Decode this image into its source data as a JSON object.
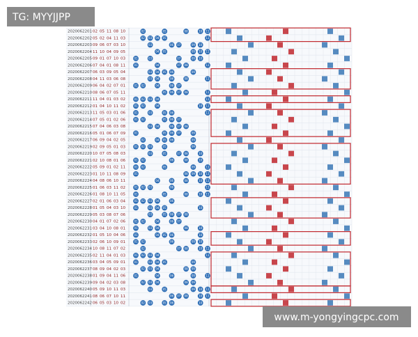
{
  "watermarks": {
    "top": "TG: MYYJJPP",
    "bottom": "www.m-yongyingcpc.com"
  },
  "table": {
    "rows": [
      {
        "issue": "2020062201",
        "nums": [
          "02",
          "05",
          "11",
          "08",
          "10"
        ]
      },
      {
        "issue": "2020062202",
        "nums": [
          "05",
          "02",
          "04",
          "11",
          "03"
        ]
      },
      {
        "issue": "2020062203",
        "nums": [
          "09",
          "06",
          "07",
          "03",
          "10"
        ]
      },
      {
        "issue": "2020062204",
        "nums": [
          "11",
          "10",
          "04",
          "09",
          "05"
        ]
      },
      {
        "issue": "2020062205",
        "nums": [
          "09",
          "01",
          "07",
          "10",
          "03"
        ]
      },
      {
        "issue": "2020062206",
        "nums": [
          "07",
          "04",
          "01",
          "08",
          "11"
        ]
      },
      {
        "issue": "2020062207",
        "nums": [
          "06",
          "03",
          "09",
          "05",
          "04"
        ]
      },
      {
        "issue": "2020062208",
        "nums": [
          "04",
          "11",
          "03",
          "06",
          "08"
        ]
      },
      {
        "issue": "2020062209",
        "nums": [
          "06",
          "04",
          "02",
          "07",
          "01"
        ]
      },
      {
        "issue": "2020062210",
        "nums": [
          "08",
          "06",
          "07",
          "05",
          "11"
        ]
      },
      {
        "issue": "2020062211",
        "nums": [
          "11",
          "04",
          "01",
          "03",
          "02"
        ]
      },
      {
        "issue": "2020062212",
        "nums": [
          "01",
          "04",
          "10",
          "11",
          "02"
        ]
      },
      {
        "issue": "2020062213",
        "nums": [
          "11",
          "05",
          "03",
          "01",
          "06"
        ]
      },
      {
        "issue": "2020062214",
        "nums": [
          "07",
          "05",
          "01",
          "02",
          "06"
        ]
      },
      {
        "issue": "2020062215",
        "nums": [
          "07",
          "04",
          "06",
          "03",
          "08"
        ]
      },
      {
        "issue": "2020062216",
        "nums": [
          "05",
          "01",
          "06",
          "07",
          "09"
        ]
      },
      {
        "issue": "2020062217",
        "nums": [
          "06",
          "09",
          "04",
          "02",
          "05"
        ]
      },
      {
        "issue": "2020062219",
        "nums": [
          "02",
          "09",
          "05",
          "01",
          "03"
        ]
      },
      {
        "issue": "2020062220",
        "nums": [
          "10",
          "07",
          "05",
          "08",
          "03"
        ]
      },
      {
        "issue": "2020062221",
        "nums": [
          "02",
          "10",
          "08",
          "01",
          "06"
        ]
      },
      {
        "issue": "2020062222",
        "nums": [
          "05",
          "09",
          "01",
          "02",
          "11"
        ]
      },
      {
        "issue": "2020062223",
        "nums": [
          "01",
          "10",
          "11",
          "08",
          "09"
        ]
      },
      {
        "issue": "2020062224",
        "nums": [
          "04",
          "08",
          "06",
          "10",
          "11"
        ]
      },
      {
        "issue": "2020062225",
        "nums": [
          "01",
          "06",
          "03",
          "11",
          "02"
        ]
      },
      {
        "issue": "2020062226",
        "nums": [
          "01",
          "08",
          "10",
          "11",
          "05"
        ]
      },
      {
        "issue": "2020062227",
        "nums": [
          "02",
          "01",
          "06",
          "03",
          "04"
        ]
      },
      {
        "issue": "2020062228",
        "nums": [
          "01",
          "05",
          "04",
          "03",
          "10"
        ]
      },
      {
        "issue": "2020062229",
        "nums": [
          "05",
          "03",
          "08",
          "07",
          "06"
        ]
      },
      {
        "issue": "2020062230",
        "nums": [
          "04",
          "01",
          "07",
          "02",
          "06"
        ]
      },
      {
        "issue": "2020062231",
        "nums": [
          "03",
          "04",
          "10",
          "08",
          "01"
        ]
      },
      {
        "issue": "2020062232",
        "nums": [
          "01",
          "05",
          "10",
          "04",
          "06"
        ]
      },
      {
        "issue": "2020062233",
        "nums": [
          "02",
          "06",
          "10",
          "09",
          "01"
        ]
      },
      {
        "issue": "2020062234",
        "nums": [
          "10",
          "08",
          "11",
          "07",
          "02"
        ]
      },
      {
        "issue": "2020062235",
        "nums": [
          "02",
          "11",
          "04",
          "01",
          "03"
        ]
      },
      {
        "issue": "2020062236",
        "nums": [
          "03",
          "04",
          "05",
          "09",
          "01"
        ]
      },
      {
        "issue": "2020062237",
        "nums": [
          "08",
          "09",
          "04",
          "02",
          "03"
        ]
      },
      {
        "issue": "2020062238",
        "nums": [
          "01",
          "09",
          "04",
          "11",
          "06"
        ]
      },
      {
        "issue": "2020062239",
        "nums": [
          "09",
          "04",
          "02",
          "03",
          "08"
        ]
      },
      {
        "issue": "2020062240",
        "nums": [
          "05",
          "09",
          "10",
          "11",
          "03"
        ]
      },
      {
        "issue": "2020062241",
        "nums": [
          "08",
          "06",
          "07",
          "10",
          "11"
        ]
      },
      {
        "issue": "2020062242",
        "nums": [
          "06",
          "05",
          "03",
          "10",
          "02"
        ]
      }
    ]
  }
}
